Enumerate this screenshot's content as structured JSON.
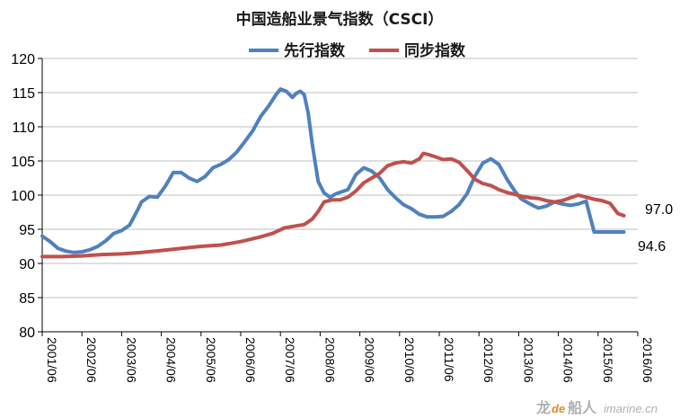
{
  "chart_data": {
    "type": "line",
    "title": "中国造船业景气指数（CSCI）",
    "xlabel": "",
    "ylabel": "",
    "ylim": [
      80,
      120
    ],
    "yticks": [
      80,
      85,
      90,
      95,
      100,
      105,
      110,
      115,
      120
    ],
    "xlim": [
      2001.5,
      2016.5
    ],
    "xticks": [
      "2001/06",
      "2002/06",
      "2003/06",
      "2004/06",
      "2005/06",
      "2006/06",
      "2007/06",
      "2008/06",
      "2009/06",
      "2010/06",
      "2011/06",
      "2012/06",
      "2013/06",
      "2014/06",
      "2015/06",
      "2016/06"
    ],
    "legend_position": "top-center",
    "grid": "horizontal",
    "series": [
      {
        "name": "先行指数",
        "color": "#4f81bd",
        "x": [
          2001.5,
          2001.7,
          2001.9,
          2002.1,
          2002.3,
          2002.5,
          2002.7,
          2002.9,
          2003.1,
          2003.3,
          2003.5,
          2003.7,
          2003.9,
          2004.0,
          2004.2,
          2004.4,
          2004.6,
          2004.8,
          2005.0,
          2005.2,
          2005.4,
          2005.6,
          2005.8,
          2006.0,
          2006.2,
          2006.4,
          2006.6,
          2006.8,
          2007.0,
          2007.2,
          2007.4,
          2007.5,
          2007.65,
          2007.8,
          2007.9,
          2008.0,
          2008.1,
          2008.2,
          2008.3,
          2008.45,
          2008.6,
          2008.75,
          2008.9,
          2009.0,
          2009.2,
          2009.4,
          2009.6,
          2009.8,
          2010.0,
          2010.2,
          2010.4,
          2010.6,
          2010.8,
          2011.0,
          2011.2,
          2011.4,
          2011.6,
          2011.8,
          2012.0,
          2012.2,
          2012.4,
          2012.6,
          2012.8,
          2013.0,
          2013.2,
          2013.4,
          2013.55,
          2013.7,
          2013.85,
          2014.0,
          2014.2,
          2014.4,
          2014.6,
          2014.8,
          2015.0,
          2015.2,
          2015.4,
          2015.6,
          2015.8,
          2015.9,
          2016.0,
          2016.05,
          2016.15
        ],
        "values": [
          94.0,
          93.2,
          92.2,
          91.8,
          91.6,
          91.7,
          92.0,
          92.5,
          93.3,
          94.4,
          94.8,
          95.6,
          97.8,
          99.0,
          99.8,
          99.7,
          101.3,
          103.3,
          103.3,
          102.5,
          102.0,
          102.7,
          104.0,
          104.5,
          105.2,
          106.3,
          107.8,
          109.4,
          111.5,
          113.0,
          114.8,
          115.5,
          115.2,
          114.3,
          114.9,
          115.2,
          114.7,
          112.0,
          107.5,
          102.0,
          100.3,
          99.7,
          100.2,
          100.4,
          100.8,
          103.0,
          104.0,
          103.5,
          102.5,
          100.8,
          99.6,
          98.6,
          98.0,
          97.2,
          96.8,
          96.8,
          96.9,
          97.6,
          98.6,
          100.2,
          102.8,
          104.7,
          105.3,
          104.5,
          102.4,
          100.6,
          99.5,
          99.0,
          98.5,
          98.1,
          98.4,
          99.0,
          98.7,
          98.5,
          98.7,
          99.1,
          94.6,
          94.6,
          94.6,
          94.6,
          94.6,
          94.6,
          94.6
        ],
        "end_label": "94.6"
      },
      {
        "name": "同步指数",
        "color": "#c0504d",
        "x": [
          2001.5,
          2002.0,
          2002.5,
          2003.0,
          2003.5,
          2004.0,
          2004.5,
          2005.0,
          2005.5,
          2006.0,
          2006.5,
          2007.0,
          2007.3,
          2007.6,
          2007.9,
          2008.1,
          2008.3,
          2008.45,
          2008.6,
          2008.8,
          2009.0,
          2009.2,
          2009.4,
          2009.6,
          2009.8,
          2010.0,
          2010.2,
          2010.4,
          2010.6,
          2010.8,
          2011.0,
          2011.1,
          2011.25,
          2011.4,
          2011.6,
          2011.8,
          2012.0,
          2012.2,
          2012.4,
          2012.6,
          2012.8,
          2013.0,
          2013.2,
          2013.4,
          2013.6,
          2013.8,
          2014.0,
          2014.2,
          2014.4,
          2014.6,
          2014.8,
          2015.0,
          2015.2,
          2015.4,
          2015.6,
          2015.8,
          2016.0,
          2016.15
        ],
        "values": [
          91.0,
          91.0,
          91.1,
          91.3,
          91.4,
          91.6,
          91.9,
          92.2,
          92.5,
          92.7,
          93.2,
          93.9,
          94.4,
          95.2,
          95.5,
          95.7,
          96.5,
          97.6,
          99.0,
          99.3,
          99.3,
          99.7,
          100.6,
          101.8,
          102.5,
          103.2,
          104.3,
          104.7,
          104.9,
          104.7,
          105.3,
          106.1,
          105.9,
          105.6,
          105.2,
          105.3,
          104.8,
          103.6,
          102.3,
          101.7,
          101.4,
          100.8,
          100.4,
          100.1,
          99.8,
          99.6,
          99.5,
          99.2,
          99.0,
          99.2,
          99.6,
          100.0,
          99.7,
          99.4,
          99.2,
          98.8,
          97.3,
          97.0
        ],
        "end_label": "97.0"
      }
    ]
  },
  "watermark": {
    "prefix": "龙",
    "brand_de": "de",
    "brand_cjk": "船人",
    "domain": "imarine.cn"
  }
}
